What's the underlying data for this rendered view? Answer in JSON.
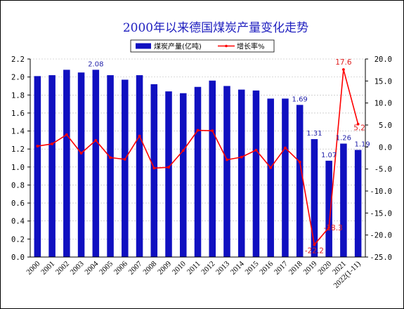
{
  "chart_data": {
    "type": "bar+line",
    "title": "2000年以来德国煤炭产量变化走势",
    "categories": [
      "2000",
      "2001",
      "2002",
      "2003",
      "2004",
      "2005",
      "2006",
      "2007",
      "2008",
      "2009",
      "2010",
      "2011",
      "2012",
      "2013",
      "2014",
      "2015",
      "2016",
      "2017",
      "2018",
      "2019",
      "2020",
      "2021",
      "2022(1-11)"
    ],
    "series": [
      {
        "name": "煤炭产量(亿吨)",
        "type": "bar",
        "axis": "left",
        "color": "#1010c0",
        "values": [
          2.01,
          2.02,
          2.08,
          2.05,
          2.08,
          2.02,
          1.97,
          2.02,
          1.92,
          1.84,
          1.82,
          1.89,
          1.96,
          1.9,
          1.86,
          1.85,
          1.76,
          1.76,
          1.69,
          1.31,
          1.07,
          1.26,
          1.19
        ]
      },
      {
        "name": "增长率%",
        "type": "line",
        "axis": "right",
        "color": "#ff0000",
        "values": [
          0.2,
          0.7,
          2.8,
          -1.4,
          1.5,
          -2.4,
          -2.8,
          2.5,
          -4.8,
          -4.6,
          -0.8,
          3.8,
          3.7,
          -2.9,
          -2.3,
          -0.7,
          -4.7,
          -0.2,
          -3.4,
          -22.2,
          -18.3,
          17.6,
          5.2
        ]
      }
    ],
    "bar_labels": [
      {
        "index": 4,
        "text": "2.08"
      },
      {
        "index": 18,
        "text": "1.69"
      },
      {
        "index": 19,
        "text": "1.31"
      },
      {
        "index": 20,
        "text": "1.07"
      },
      {
        "index": 21,
        "text": "1.26"
      },
      {
        "index": 22,
        "text": "1.19"
      }
    ],
    "rate_labels": [
      {
        "index": 19,
        "text": "-22.2"
      },
      {
        "index": 20,
        "text": "-18.3"
      },
      {
        "index": 21,
        "text": "17.6"
      },
      {
        "index": 22,
        "text": "5.2"
      }
    ],
    "y_left": {
      "min": 0.0,
      "max": 2.2,
      "step": 0.2,
      "ticks": [
        "0.0",
        "0.2",
        "0.4",
        "0.6",
        "0.8",
        "1.0",
        "1.2",
        "1.4",
        "1.6",
        "1.8",
        "2.0",
        "2.2"
      ]
    },
    "y_right": {
      "min": -25.0,
      "max": 20.0,
      "step": 5.0,
      "ticks": [
        "-25.0",
        "-20.0",
        "-15.0",
        "-10.0",
        "-5.0",
        "0.0",
        "5.0",
        "10.0",
        "15.0",
        "20.0"
      ]
    },
    "grid": true,
    "legend_placement": "top-center"
  }
}
